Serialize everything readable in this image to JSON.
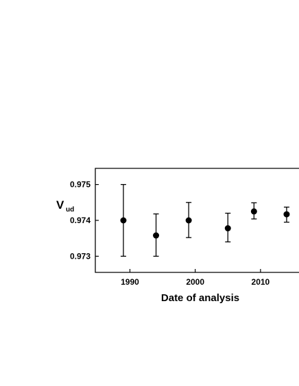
{
  "chart_data": {
    "type": "scatter",
    "title": "",
    "xlabel": "Date of analysis",
    "ylabel": "V",
    "ylabel_subscript": "ud",
    "xlim": [
      1984.7,
      2016
    ],
    "ylim": [
      0.97255,
      0.97545
    ],
    "x_ticks": [
      1990,
      2000,
      2010
    ],
    "x_tick_labels": [
      "1990",
      "2000",
      "2010"
    ],
    "y_ticks": [
      0.973,
      0.974,
      0.975
    ],
    "y_tick_labels": [
      "0.973",
      "0.974",
      "0.975"
    ],
    "grid": false,
    "error_bars": true,
    "points": [
      {
        "x": 1989,
        "y": 0.974,
        "err_low": 0.973,
        "err_high": 0.975
      },
      {
        "x": 1994,
        "y": 0.97358,
        "err_low": 0.973,
        "err_high": 0.97418
      },
      {
        "x": 1999,
        "y": 0.974,
        "err_low": 0.97352,
        "err_high": 0.9745
      },
      {
        "x": 2005,
        "y": 0.97378,
        "err_low": 0.9734,
        "err_high": 0.9742
      },
      {
        "x": 2009,
        "y": 0.97425,
        "err_low": 0.97404,
        "err_high": 0.97449
      },
      {
        "x": 2014,
        "y": 0.97417,
        "err_low": 0.97395,
        "err_high": 0.97437
      }
    ],
    "marker_color": "#000000"
  }
}
